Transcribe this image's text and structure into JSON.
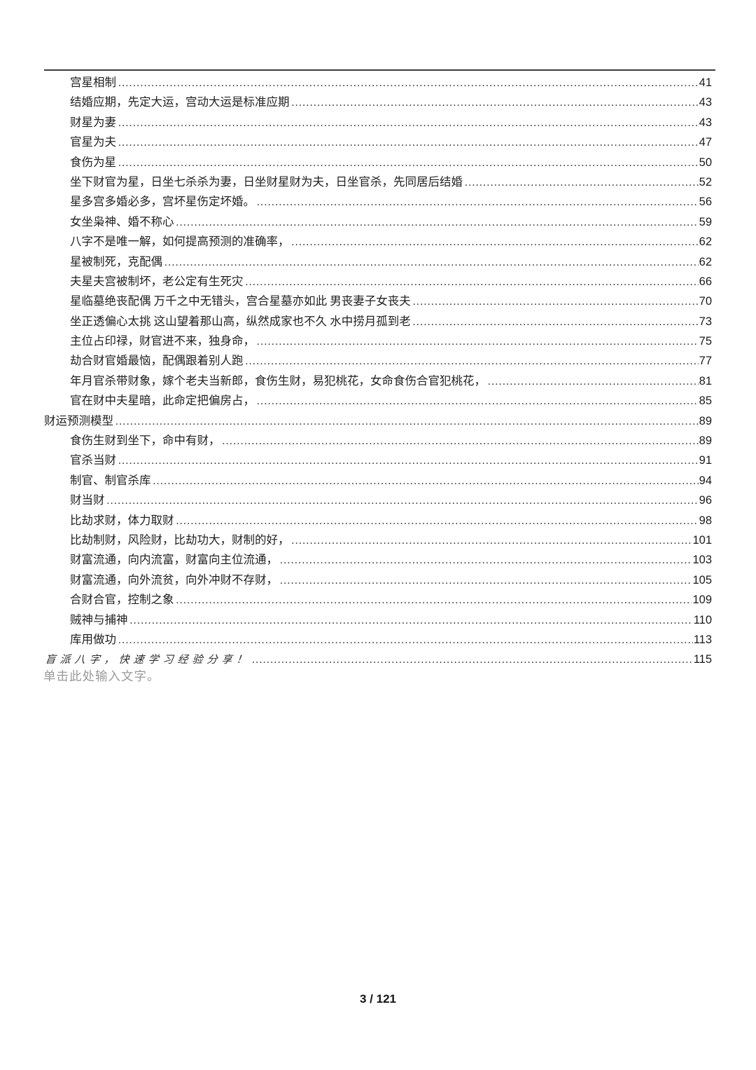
{
  "toc": {
    "entries": [
      {
        "title": "宫星相制",
        "page": "41",
        "level": 2
      },
      {
        "title": "结婚应期，先定大运，宫动大运是标准应期",
        "page": "43",
        "level": 2
      },
      {
        "title": "财星为妻",
        "page": "43",
        "level": 2
      },
      {
        "title": "官星为夫",
        "page": "47",
        "level": 2
      },
      {
        "title": "食伤为星",
        "page": "50",
        "level": 2
      },
      {
        "title": "坐下财官为星，日坐七杀杀为妻，日坐财星财为夫，日坐官杀，先同居后结婚",
        "page": "52",
        "level": 2
      },
      {
        "title": "星多宫多婚必多，宫坏星伤定坏婚。",
        "page": "56",
        "level": 2
      },
      {
        "title": "女坐枭神、婚不称心",
        "page": "59",
        "level": 2
      },
      {
        "title": "八字不是唯一解，如何提高预测的准确率，",
        "page": "62",
        "level": 2
      },
      {
        "title": "星被制死，克配偶",
        "page": "62",
        "level": 2
      },
      {
        "title": "夫星夫宫被制坏，老公定有生死灾",
        "page": "66",
        "level": 2
      },
      {
        "title": "星临墓绝丧配偶 万千之中无错头，宫合星墓亦如此 男丧妻子女丧夫",
        "page": "70",
        "level": 2
      },
      {
        "title": "坐正透偏心太挑 这山望着那山高，纵然成家也不久 水中捞月孤到老",
        "page": "73",
        "level": 2
      },
      {
        "title": "主位占印禄，财官进不来，独身命，",
        "page": "75",
        "level": 2
      },
      {
        "title": "劫合财官婚最恼，配偶跟着别人跑",
        "page": "77",
        "level": 2
      },
      {
        "title": "年月官杀带财象，嫁个老夫当新郎，食伤生财，易犯桃花，女命食伤合官犯桃花，",
        "page": "81",
        "level": 2
      },
      {
        "title": "官在财中夫星暗，此命定把偏房占，",
        "page": "85",
        "level": 2
      },
      {
        "title": "财运预测模型",
        "page": "89",
        "level": 1
      },
      {
        "title": "食伤生财到坐下，命中有财，",
        "page": "89",
        "level": 2
      },
      {
        "title": "官杀当财",
        "page": "91",
        "level": 2
      },
      {
        "title": "制官、制官杀库",
        "page": "94",
        "level": 2
      },
      {
        "title": "财当财",
        "page": "96",
        "level": 2
      },
      {
        "title": "比劫求财，体力取财",
        "page": "98",
        "level": 2
      },
      {
        "title": "比劫制财，风险财，比劫功大，财制的好，",
        "page": "101",
        "level": 2
      },
      {
        "title": "财富流通，向内流富，财富向主位流通，",
        "page": "103",
        "level": 2
      },
      {
        "title": "财富流通，向外流贫，向外冲财不存财，",
        "page": "105",
        "level": 2
      },
      {
        "title": "合财合官，控制之象",
        "page": "109",
        "level": 2
      },
      {
        "title": "贼神与捕神",
        "page": "110",
        "level": 2
      },
      {
        "title": "库用做功",
        "page": "113",
        "level": 2
      },
      {
        "title": "盲派八字，快速学习经验分享！",
        "page": "115",
        "level": 1,
        "handwritten": true
      }
    ]
  },
  "page": {
    "placeholder_text": "单击此处输入文字。",
    "footer_page_indicator": "3 / 121"
  }
}
